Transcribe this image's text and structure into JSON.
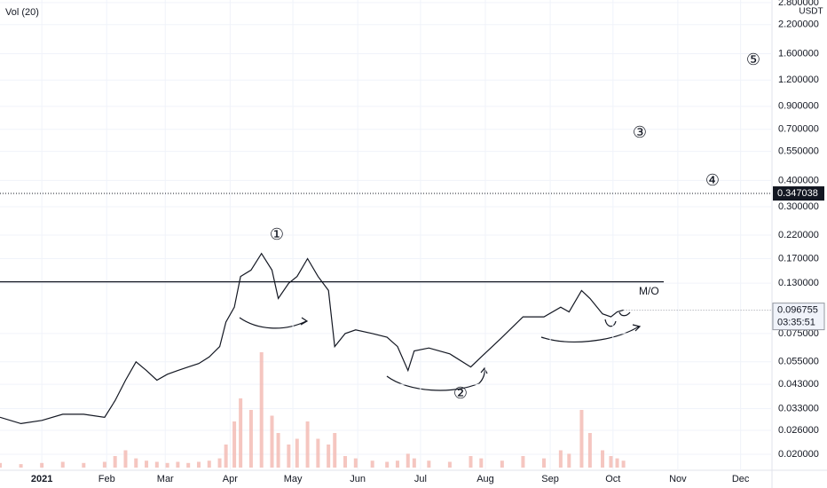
{
  "chart_data": {
    "type": "line",
    "indicator_label": "Vol (20)",
    "currency": "USDT",
    "log_scale": true,
    "grid": true,
    "color": "#131722",
    "x": [
      -20,
      -10,
      0,
      10,
      20,
      30,
      35,
      40,
      45,
      50,
      55,
      60,
      65,
      70,
      75,
      80,
      85,
      88,
      92,
      95,
      100,
      105,
      110,
      113,
      118,
      122,
      127,
      132,
      137,
      140,
      145,
      150,
      158,
      165,
      170,
      175,
      178,
      185,
      195,
      205,
      210,
      220,
      230,
      240,
      248,
      252,
      258,
      262,
      268,
      272,
      275,
      278
    ],
    "values": [
      0.03,
      0.028,
      0.029,
      0.031,
      0.031,
      0.03,
      0.036,
      0.045,
      0.055,
      0.05,
      0.045,
      0.048,
      0.05,
      0.052,
      0.054,
      0.058,
      0.065,
      0.085,
      0.1,
      0.14,
      0.15,
      0.18,
      0.15,
      0.11,
      0.13,
      0.14,
      0.17,
      0.14,
      0.12,
      0.065,
      0.075,
      0.078,
      0.075,
      0.072,
      0.065,
      0.05,
      0.062,
      0.064,
      0.06,
      0.052,
      0.058,
      0.072,
      0.09,
      0.09,
      0.1,
      0.095,
      0.12,
      0.11,
      0.093,
      0.09,
      0.095,
      0.097
    ],
    "volume": [
      4,
      3,
      4,
      5,
      4,
      5,
      10,
      15,
      8,
      6,
      5,
      4,
      5,
      4,
      5,
      6,
      8,
      20,
      40,
      60,
      50,
      100,
      45,
      30,
      20,
      25,
      40,
      25,
      20,
      30,
      10,
      8,
      6,
      5,
      6,
      12,
      8,
      6,
      5,
      10,
      8,
      6,
      10,
      8,
      15,
      12,
      50,
      30,
      15,
      10,
      8,
      6
    ],
    "volume_color": "#f2b8b0",
    "xlim": [
      -20,
      349
    ],
    "xticks": [
      {
        "value": 0,
        "label": "2021"
      },
      {
        "value": 31,
        "label": "Feb"
      },
      {
        "value": 59,
        "label": "Mar"
      },
      {
        "value": 90,
        "label": "Apr"
      },
      {
        "value": 120,
        "label": "May"
      },
      {
        "value": 151,
        "label": "Jun"
      },
      {
        "value": 181,
        "label": "Jul"
      },
      {
        "value": 212,
        "label": "Aug"
      },
      {
        "value": 243,
        "label": "Sep"
      },
      {
        "value": 273,
        "label": "Oct"
      },
      {
        "value": 304,
        "label": "Nov"
      },
      {
        "value": 334,
        "label": "Dec"
      }
    ],
    "ylim": [
      0.0168,
      2.88
    ],
    "yticks": [
      {
        "value": 0.02,
        "label": "0.020000"
      },
      {
        "value": 0.026,
        "label": "0.026000"
      },
      {
        "value": 0.033,
        "label": "0.033000"
      },
      {
        "value": 0.043,
        "label": "0.043000"
      },
      {
        "value": 0.055,
        "label": "0.055000"
      },
      {
        "value": 0.075,
        "label": "0.075000"
      },
      {
        "value": 0.13,
        "label": "0.130000"
      },
      {
        "value": 0.17,
        "label": "0.170000"
      },
      {
        "value": 0.22,
        "label": "0.220000"
      },
      {
        "value": 0.3,
        "label": "0.300000"
      },
      {
        "value": 0.4,
        "label": "0.400000"
      },
      {
        "value": 0.55,
        "label": "0.550000"
      },
      {
        "value": 0.7,
        "label": "0.700000"
      },
      {
        "value": 0.9,
        "label": "0.900000"
      },
      {
        "value": 1.2,
        "label": "1.200000"
      },
      {
        "value": 1.6,
        "label": "1.600000"
      },
      {
        "value": 2.2,
        "label": "2.200000"
      },
      {
        "value": 2.8,
        "label": "2.800000"
      }
    ],
    "marked_price": {
      "value": 0.347038,
      "label": "0.347038"
    },
    "last_price": {
      "value": 0.096755,
      "label": "0.096755"
    },
    "countdown": "03:35:51",
    "mo_level": 0.132,
    "mo_label": "M/O",
    "wave_labels": [
      "①",
      "②",
      "③",
      "④",
      "⑤"
    ]
  }
}
